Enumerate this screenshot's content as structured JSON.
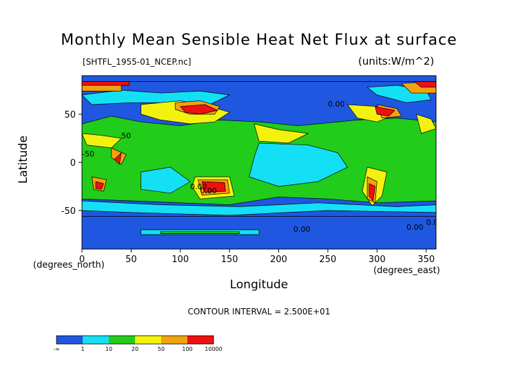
{
  "chart_data": {
    "type": "heatmap",
    "title": "Monthly Mean Sensible Heat Net Flux at surface",
    "source_file": "[SHTFL_1955-01_NCEP.nc]",
    "units": "(units:W/m^2)",
    "xlabel": "Longitude",
    "ylabel": "Latitude",
    "x_unit": "(degrees_east)",
    "y_unit": "(degrees_north)",
    "xlim": [
      0,
      360
    ],
    "ylim": [
      -90,
      90
    ],
    "x_ticks": [
      "0",
      "50",
      "100",
      "150",
      "200",
      "250",
      "300",
      "350"
    ],
    "y_ticks": [
      "50",
      "0",
      "-50"
    ],
    "contour_interval": "CONTOUR INTERVAL = 2.500E+01",
    "contour_labels": [
      "50",
      "-50",
      "0.00",
      "0.00",
      "0.00",
      "0.00",
      "0.00",
      "0.00"
    ],
    "colorbar": {
      "labels": [
        "-∞",
        "1",
        "10",
        "20",
        "50",
        "100",
        "10000"
      ],
      "colors": [
        "#1f57e0",
        "#1f57e0",
        "#14e0f5",
        "#14e0f5",
        "#22cc1a",
        "#22cc1a",
        "#f2f20e",
        "#f2f20e",
        "#f2a20e",
        "#f2a20e",
        "#f01010",
        "#f01010"
      ]
    },
    "color_scale": [
      "#1f57e0",
      "#14e0f5",
      "#22cc1a",
      "#f2f20e",
      "#f2a20e",
      "#f01010"
    ]
  }
}
